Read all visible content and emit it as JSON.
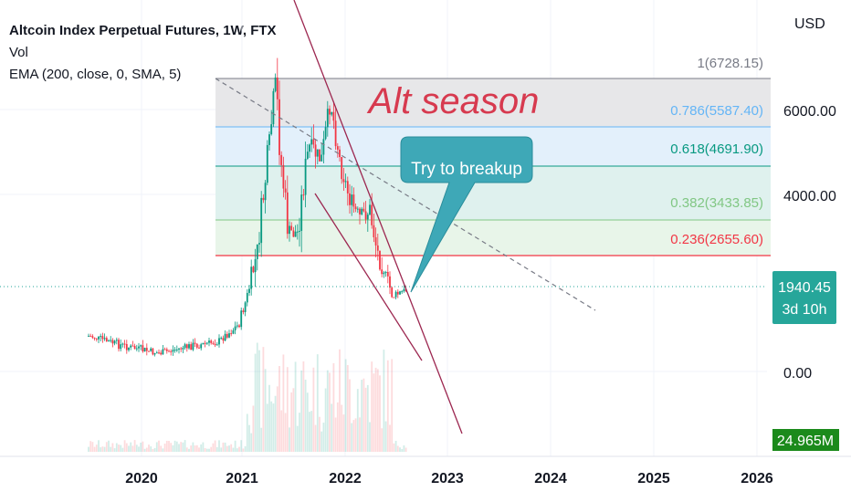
{
  "legend": {
    "title": "Altcoin Index Perpetual Futures, 1W, FTX",
    "vol": "Vol",
    "ema": "EMA (200, close, 0, SMA, 5)"
  },
  "currency": "USD",
  "annotations": {
    "alt_season": "Alt season",
    "callout": "Try to breakup"
  },
  "price_badge": {
    "price": "1940.45",
    "countdown": "3d 10h",
    "color": "#26a69a"
  },
  "volume_badge": {
    "value": "24.965M",
    "color": "#1b8a1b"
  },
  "chart_data": {
    "type": "candlestick",
    "x_axis": {
      "ticks": [
        "2020",
        "2021",
        "2022",
        "2023",
        "2024",
        "2025",
        "2026"
      ]
    },
    "y_axis": {
      "ticks": [
        "6000.00",
        "4000.00",
        "0.00"
      ]
    },
    "fib_levels": [
      {
        "ratio": "1",
        "price": "6728.15",
        "label": "1(6728.15)",
        "color": "#787b86",
        "fill": "#e7e7e9"
      },
      {
        "ratio": "0.786",
        "price": "5587.40",
        "label": "0.786(5587.40)",
        "color": "#64b5f6",
        "fill": "#e3f0fb"
      },
      {
        "ratio": "0.618",
        "price": "4691.90",
        "label": "0.618(4691.90)",
        "color": "#089981",
        "fill": "#dff1ee"
      },
      {
        "ratio": "0.382",
        "price": "3433.85",
        "label": "0.382(3433.85)",
        "color": "#81c784",
        "fill": "#e8f5e9"
      },
      {
        "ratio": "0.236",
        "price": "2655.60",
        "label": "0.236(2655.60)",
        "color": "#f23645",
        "fill": "#fdecee"
      }
    ],
    "last_price": 1940.45,
    "up_color": "#089981",
    "down_color": "#f23645"
  }
}
